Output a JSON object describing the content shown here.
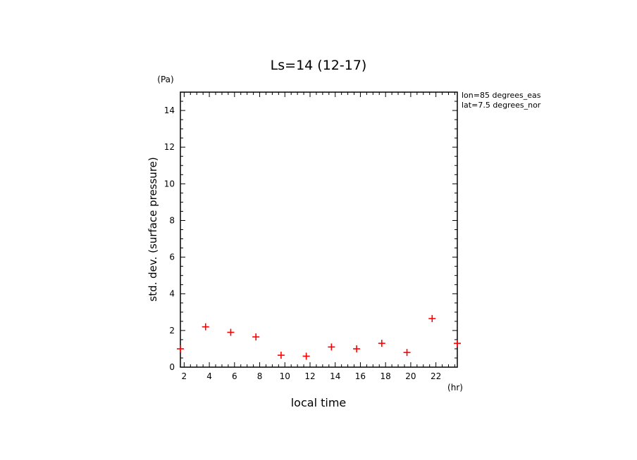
{
  "chart_data": {
    "type": "scatter",
    "title": "Ls=14 (12-17)",
    "xlabel": "local time",
    "ylabel": "std. dev. (surface pressure)",
    "x_unit": "(hr)",
    "y_unit": "(Pa)",
    "annotations": [
      "lon=85 degrees_eas",
      "lat=7.5 degrees_nor"
    ],
    "xlim": [
      1.7,
      23.7
    ],
    "ylim": [
      0,
      15
    ],
    "x_ticks": [
      2,
      4,
      6,
      8,
      10,
      12,
      14,
      16,
      18,
      20,
      22
    ],
    "y_ticks": [
      0,
      2,
      4,
      6,
      8,
      10,
      12,
      14
    ],
    "marker": "plus",
    "marker_color": "#ff0000",
    "grid": false,
    "series": [
      {
        "x": [
          1.7,
          3.7,
          5.7,
          7.7,
          9.7,
          11.7,
          13.7,
          15.7,
          17.7,
          19.7,
          21.7,
          23.7
        ],
        "y": [
          1.0,
          2.2,
          1.9,
          1.65,
          0.65,
          0.6,
          1.1,
          1.0,
          1.3,
          0.8,
          2.65,
          1.3
        ]
      }
    ]
  }
}
